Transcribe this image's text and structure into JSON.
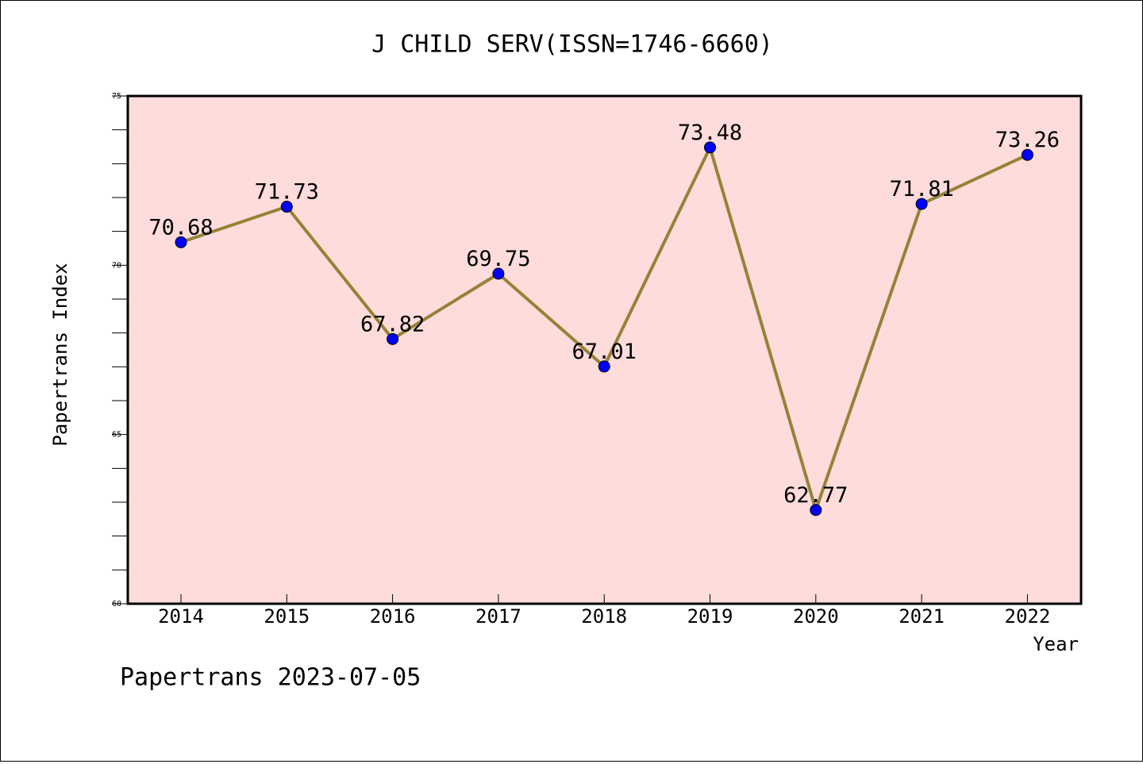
{
  "chart_data": {
    "type": "line",
    "title": "J CHILD SERV(ISSN=1746-6660)",
    "xlabel": "Year",
    "ylabel": "Papertrans Index",
    "categories": [
      "2014",
      "2015",
      "2016",
      "2017",
      "2018",
      "2019",
      "2020",
      "2021",
      "2022"
    ],
    "values": [
      70.68,
      71.73,
      67.82,
      69.75,
      67.01,
      73.48,
      62.77,
      71.81,
      73.26
    ],
    "data_labels": [
      "70.68",
      "71.73",
      "67.82",
      "69.75",
      "67.01",
      "73.48",
      "62.77",
      "71.81",
      "73.26"
    ],
    "ylim": [
      60,
      75
    ],
    "yticks": [
      "60",
      "65",
      "70",
      "75"
    ],
    "grid": false,
    "legend": "none",
    "colors": {
      "plot_background": "#fedcdb",
      "line": "#948337",
      "marker": "#0000ff"
    }
  },
  "footer": "Papertrans 2023-07-05"
}
